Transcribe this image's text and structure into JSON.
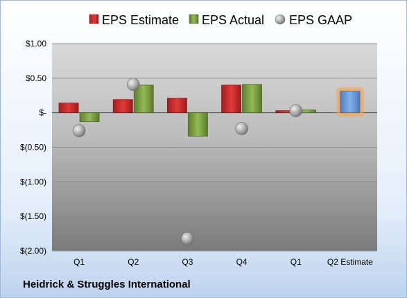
{
  "company": "Heidrick & Struggles International",
  "chart_data": {
    "type": "bar",
    "categories": [
      "Q1",
      "Q2",
      "Q3",
      "Q4",
      "Q1",
      "Q2 Estimate"
    ],
    "series": [
      {
        "name": "EPS Estimate",
        "color": "#cc2a2a",
        "values": [
          0.14,
          0.19,
          0.21,
          0.4,
          0.03,
          null
        ]
      },
      {
        "name": "EPS Actual",
        "color": "#7fa341",
        "values": [
          -0.13,
          0.4,
          -0.34,
          0.41,
          0.04,
          0.31
        ]
      },
      {
        "name": "EPS GAAP",
        "type": "scatter",
        "color": "#a9a9a9",
        "values": [
          -0.26,
          0.41,
          -1.82,
          -0.23,
          0.03,
          null
        ]
      }
    ],
    "estimate_bar": {
      "category": "Q2 Estimate",
      "value": 0.31,
      "color": "#6f9fdd",
      "glow": "#f4a54a"
    },
    "y_ticks": [
      "$1.00",
      "$0.50",
      "$-",
      "$(0.50)",
      "$(1.00)",
      "$(1.50)",
      "$(2.00)"
    ],
    "y_tick_values": [
      1.0,
      0.5,
      0,
      -0.5,
      -1.0,
      -1.5,
      -2.0
    ],
    "ylim": [
      -2.0,
      1.0
    ],
    "grid": true,
    "legend_position": "top"
  }
}
